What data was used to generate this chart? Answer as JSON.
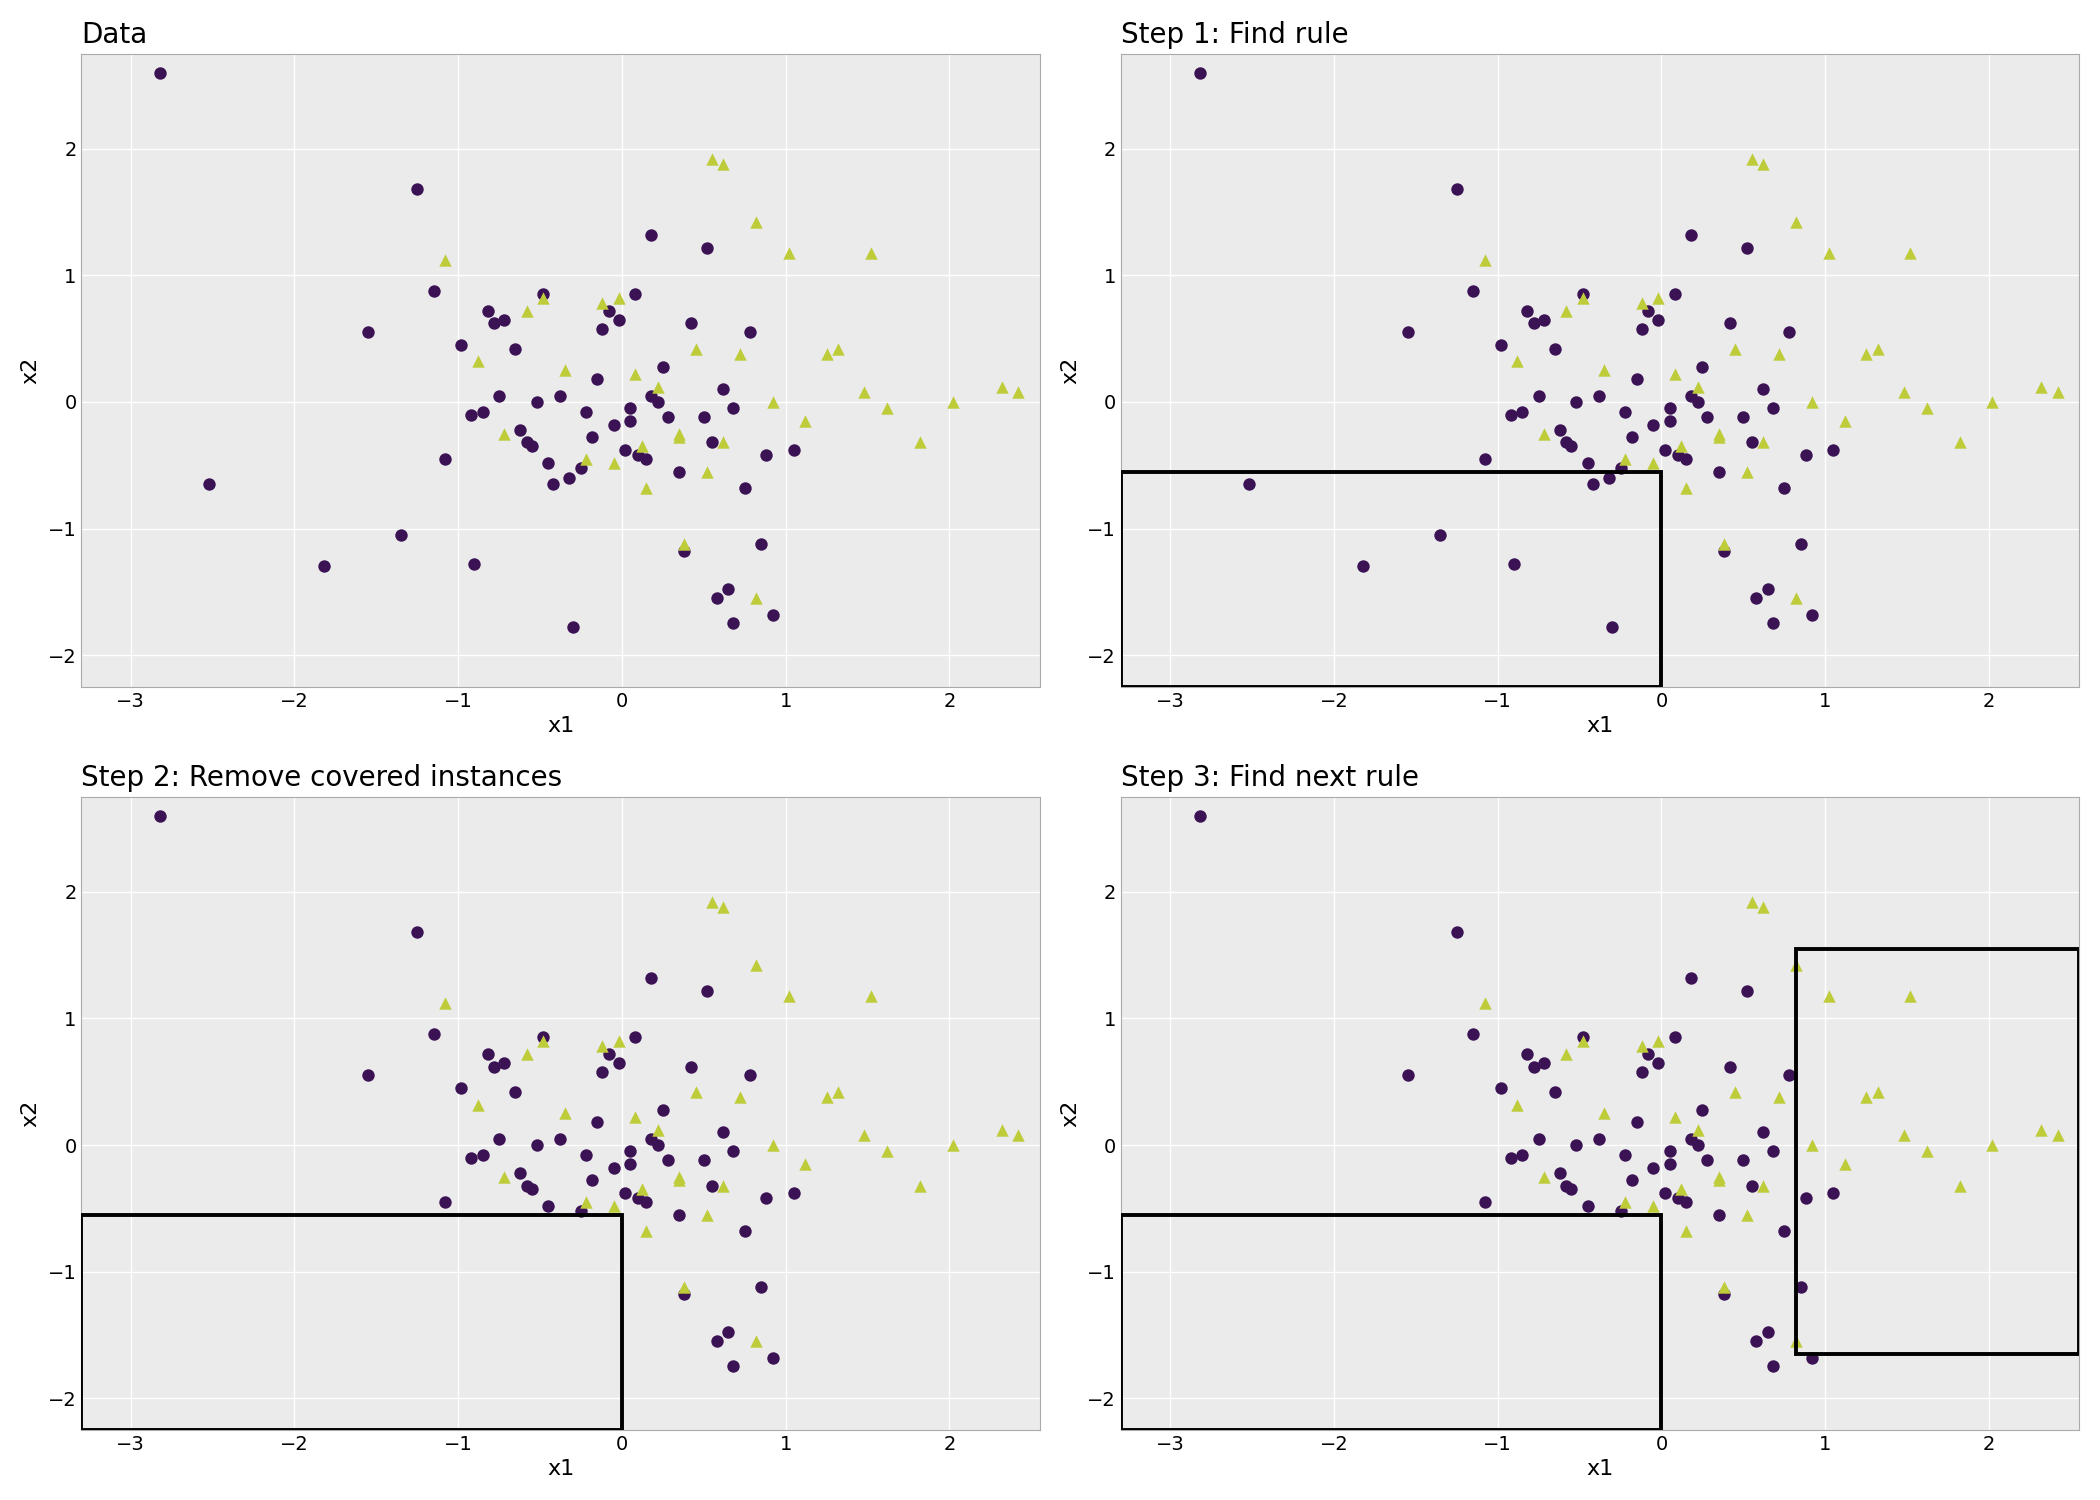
{
  "title1": "Data",
  "title2": "Step 1: Find rule",
  "title3": "Step 2: Remove covered instances",
  "title4": "Step 3: Find next rule",
  "xlabel": "x1",
  "ylabel": "x2",
  "xlim": [
    -3.3,
    2.55
  ],
  "ylim": [
    -2.25,
    2.75
  ],
  "xticks": [
    -3,
    -2,
    -1,
    0,
    1,
    2
  ],
  "yticks": [
    -2,
    -1,
    0,
    1,
    2
  ],
  "circle_color": "#3B1354",
  "triangle_color": "#BECC3A",
  "bg_color": "#EBEBEB",
  "fig_color": "#FFFFFF",
  "rect1_x": -3.3,
  "rect1_y": -2.25,
  "rect1_x2": 0.0,
  "rect1_y2": -0.55,
  "rect2_x": 0.82,
  "rect2_y": -1.65,
  "rect2_x2": 2.55,
  "rect2_y2": 1.55,
  "circles_x": [
    -2.82,
    -2.52,
    -1.82,
    -1.55,
    -1.25,
    -1.08,
    -0.98,
    -0.92,
    -0.82,
    -0.78,
    -0.72,
    -0.65,
    -0.58,
    -0.52,
    -0.45,
    -0.38,
    -0.32,
    -0.25,
    -0.18,
    -0.12,
    -0.08,
    -0.02,
    0.05,
    0.1,
    0.18,
    0.22,
    0.28,
    0.35,
    0.42,
    0.5,
    0.55,
    0.62,
    0.68,
    0.75,
    0.85,
    0.92,
    1.05,
    -1.35,
    -0.9,
    -0.3,
    0.18,
    0.52,
    0.65,
    0.78,
    -1.15,
    -0.48,
    -0.55,
    -0.22,
    0.05,
    0.15,
    0.38,
    0.58,
    0.68,
    0.88,
    -0.05,
    0.02,
    -0.42,
    0.08,
    0.25,
    -0.15,
    -0.62,
    -0.75,
    -0.85
  ],
  "circles_y": [
    2.6,
    -0.65,
    -1.3,
    0.55,
    1.68,
    -0.45,
    0.45,
    -0.1,
    0.72,
    0.62,
    0.65,
    0.42,
    -0.32,
    0.0,
    -0.48,
    0.05,
    -0.6,
    -0.52,
    -0.28,
    0.58,
    0.72,
    0.65,
    -0.05,
    -0.42,
    0.05,
    0.0,
    -0.12,
    -0.55,
    0.62,
    -0.12,
    -0.32,
    0.1,
    -0.05,
    -0.68,
    -1.12,
    -1.68,
    -0.38,
    -1.05,
    -1.28,
    -1.78,
    1.32,
    1.22,
    -1.48,
    0.55,
    0.88,
    0.85,
    -0.35,
    -0.08,
    -0.15,
    -0.45,
    -1.18,
    -1.55,
    -1.75,
    -0.42,
    -0.18,
    -0.38,
    -0.65,
    0.85,
    0.28,
    0.18,
    -0.22,
    0.05,
    -0.08
  ],
  "triangles_x": [
    -1.08,
    -0.88,
    -0.72,
    -0.58,
    -0.48,
    -0.35,
    -0.22,
    -0.12,
    -0.02,
    0.08,
    0.12,
    0.22,
    0.35,
    0.45,
    0.52,
    0.62,
    0.72,
    0.82,
    0.92,
    1.02,
    1.12,
    1.32,
    1.52,
    1.62,
    1.82,
    2.02,
    2.32,
    0.38,
    0.55,
    0.35,
    -0.05,
    0.15,
    0.62,
    0.82,
    1.25,
    1.48,
    2.42
  ],
  "triangles_y": [
    1.12,
    0.32,
    -0.25,
    0.72,
    0.82,
    0.25,
    -0.45,
    0.78,
    0.82,
    0.22,
    -0.35,
    0.12,
    -0.25,
    0.42,
    -0.55,
    1.88,
    0.38,
    1.42,
    0.0,
    1.18,
    -0.15,
    0.42,
    1.18,
    -0.05,
    -0.32,
    0.0,
    0.12,
    -1.12,
    1.92,
    -0.28,
    -0.48,
    -0.68,
    -0.32,
    -1.55,
    0.38,
    0.08,
    0.08
  ]
}
